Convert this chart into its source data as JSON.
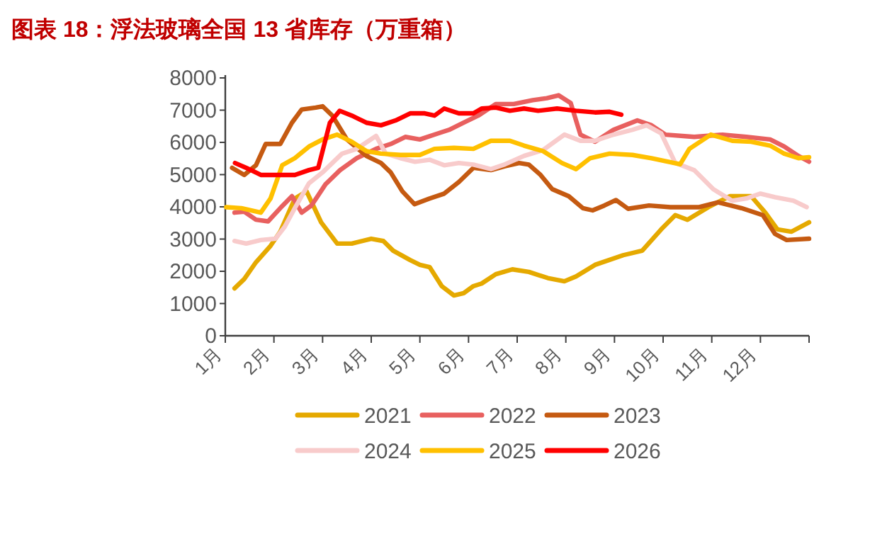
{
  "chart_data": {
    "type": "line",
    "title": "图表 18：浮法玻璃全国 13 省库存（万重箱）",
    "xlim": [
      1,
      13
    ],
    "xticks": [
      {
        "value": 1,
        "label": "1月"
      },
      {
        "value": 2,
        "label": "2月"
      },
      {
        "value": 3,
        "label": "3月"
      },
      {
        "value": 4,
        "label": "4月"
      },
      {
        "value": 5,
        "label": "5月"
      },
      {
        "value": 6,
        "label": "6月"
      },
      {
        "value": 7,
        "label": "7月"
      },
      {
        "value": 8,
        "label": "8月"
      },
      {
        "value": 9,
        "label": "9月"
      },
      {
        "value": 10,
        "label": "10月"
      },
      {
        "value": 11,
        "label": "11月"
      },
      {
        "value": 12,
        "label": "12月"
      },
      {
        "value": 13,
        "label": null
      }
    ],
    "ylim": [
      0,
      8000
    ],
    "yticks": [
      0,
      1000,
      2000,
      3000,
      4000,
      5000,
      6000,
      7000,
      8000
    ],
    "legend": "bottom",
    "series": [
      {
        "name": "2021",
        "color": "#e5a900",
        "x": [
          1.19,
          1.39,
          1.63,
          1.93,
          2.13,
          2.43,
          2.67,
          2.97,
          3.3,
          3.6,
          4.0,
          4.25,
          4.45,
          4.8,
          5.0,
          5.2,
          5.45,
          5.7,
          5.9,
          6.1,
          6.27,
          6.56,
          6.9,
          7.24,
          7.63,
          7.97,
          8.21,
          8.6,
          9.18,
          9.57,
          9.96,
          10.25,
          10.5,
          10.93,
          11.37,
          11.81,
          12.1,
          12.35,
          12.64,
          13.0
        ],
        "values": [
          1470,
          1760,
          2280,
          2790,
          3230,
          4260,
          4480,
          3520,
          2860,
          2860,
          3010,
          2940,
          2640,
          2350,
          2200,
          2130,
          1540,
          1250,
          1320,
          1540,
          1620,
          1910,
          2060,
          1980,
          1790,
          1690,
          1840,
          2200,
          2500,
          2640,
          3300,
          3740,
          3600,
          3990,
          4330,
          4330,
          3820,
          3300,
          3230,
          3520
        ]
      },
      {
        "name": "2022",
        "color": "#e8605f",
        "x": [
          1.19,
          1.39,
          1.63,
          1.88,
          2.13,
          2.37,
          2.57,
          2.77,
          3.06,
          3.36,
          3.7,
          4.1,
          4.4,
          4.7,
          5.0,
          5.3,
          5.6,
          5.9,
          6.2,
          6.56,
          6.93,
          7.32,
          7.61,
          7.85,
          8.1,
          8.3,
          8.6,
          8.98,
          9.47,
          9.76,
          10.05,
          10.64,
          11.22,
          11.71,
          12.2,
          12.49,
          12.78,
          13.0
        ],
        "values": [
          3820,
          3850,
          3600,
          3550,
          3960,
          4330,
          3820,
          4040,
          4700,
          5140,
          5510,
          5800,
          5950,
          6170,
          6090,
          6240,
          6390,
          6610,
          6830,
          7190,
          7190,
          7310,
          7370,
          7460,
          7220,
          6240,
          6020,
          6390,
          6680,
          6530,
          6240,
          6170,
          6240,
          6170,
          6090,
          5870,
          5580,
          5400
        ]
      },
      {
        "name": "2023",
        "color": "#c55a11",
        "x": [
          1.14,
          1.39,
          1.63,
          1.83,
          2.13,
          2.37,
          2.57,
          2.86,
          3.0,
          3.2,
          3.5,
          3.9,
          4.2,
          4.4,
          4.64,
          4.89,
          5.2,
          5.5,
          5.8,
          6.1,
          6.46,
          6.75,
          7.04,
          7.24,
          7.48,
          7.72,
          8.06,
          8.35,
          8.55,
          8.79,
          9.03,
          9.28,
          9.71,
          10.15,
          10.74,
          11.13,
          11.61,
          12.05,
          12.3,
          12.54,
          13.0
        ],
        "values": [
          5210,
          4990,
          5290,
          5950,
          5950,
          6610,
          7020,
          7080,
          7120,
          6830,
          6090,
          5580,
          5360,
          5070,
          4480,
          4080,
          4260,
          4410,
          4770,
          5210,
          5140,
          5260,
          5360,
          5310,
          4990,
          4550,
          4330,
          3960,
          3890,
          4040,
          4210,
          3940,
          4040,
          3990,
          3990,
          4140,
          3960,
          3740,
          3160,
          2970,
          3010
        ]
      },
      {
        "name": "2024",
        "color": "#f8cbcb",
        "x": [
          1.19,
          1.43,
          1.73,
          2.03,
          2.22,
          2.43,
          2.72,
          3.0,
          3.4,
          3.7,
          3.95,
          4.1,
          4.3,
          4.6,
          4.9,
          5.2,
          5.5,
          5.8,
          6.1,
          6.46,
          6.75,
          7.14,
          7.53,
          7.97,
          8.3,
          8.6,
          8.98,
          9.37,
          9.66,
          9.96,
          10.25,
          10.64,
          11.03,
          11.42,
          11.71,
          12.0,
          12.3,
          12.68,
          12.95
        ],
        "values": [
          2940,
          2860,
          2970,
          3010,
          3380,
          3960,
          4730,
          5070,
          5650,
          5800,
          6050,
          6200,
          5650,
          5510,
          5400,
          5460,
          5290,
          5360,
          5310,
          5170,
          5320,
          5580,
          5760,
          6240,
          6050,
          6050,
          6240,
          6390,
          6530,
          6280,
          5360,
          5140,
          4550,
          4190,
          4260,
          4410,
          4300,
          4190,
          3990
        ]
      },
      {
        "name": "2025",
        "color": "#ffc000",
        "x": [
          1.02,
          1.33,
          1.73,
          1.93,
          2.17,
          2.43,
          2.72,
          3.0,
          3.3,
          3.6,
          3.9,
          4.2,
          4.6,
          5.0,
          5.3,
          5.7,
          6.1,
          6.46,
          6.85,
          7.14,
          7.53,
          7.92,
          8.21,
          8.5,
          8.9,
          9.37,
          9.76,
          10.35,
          10.54,
          10.98,
          11.42,
          11.81,
          12.2,
          12.49,
          12.78,
          13.0
        ],
        "values": [
          3990,
          3960,
          3820,
          4260,
          5290,
          5510,
          5870,
          6090,
          6240,
          6020,
          5730,
          5650,
          5610,
          5610,
          5800,
          5830,
          5800,
          6050,
          6050,
          5900,
          5730,
          5360,
          5170,
          5510,
          5650,
          5610,
          5510,
          5320,
          5800,
          6240,
          6050,
          6020,
          5900,
          5650,
          5510,
          5540
        ]
      },
      {
        "name": "2026",
        "color": "#ff0000",
        "x": [
          1.2,
          1.43,
          1.73,
          2.13,
          2.43,
          2.72,
          2.91,
          3.15,
          3.35,
          3.6,
          3.9,
          4.2,
          4.5,
          4.8,
          5.1,
          5.3,
          5.5,
          5.8,
          6.1,
          6.27,
          6.56,
          6.85,
          7.14,
          7.43,
          7.82,
          8.21,
          8.6,
          8.9,
          9.14
        ],
        "values": [
          5360,
          5210,
          4990,
          4990,
          4990,
          5140,
          5210,
          6610,
          6980,
          6830,
          6610,
          6530,
          6680,
          6900,
          6900,
          6830,
          7050,
          6900,
          6900,
          7050,
          7080,
          6980,
          7050,
          6980,
          7050,
          6980,
          6930,
          6950,
          6860
        ]
      }
    ]
  }
}
